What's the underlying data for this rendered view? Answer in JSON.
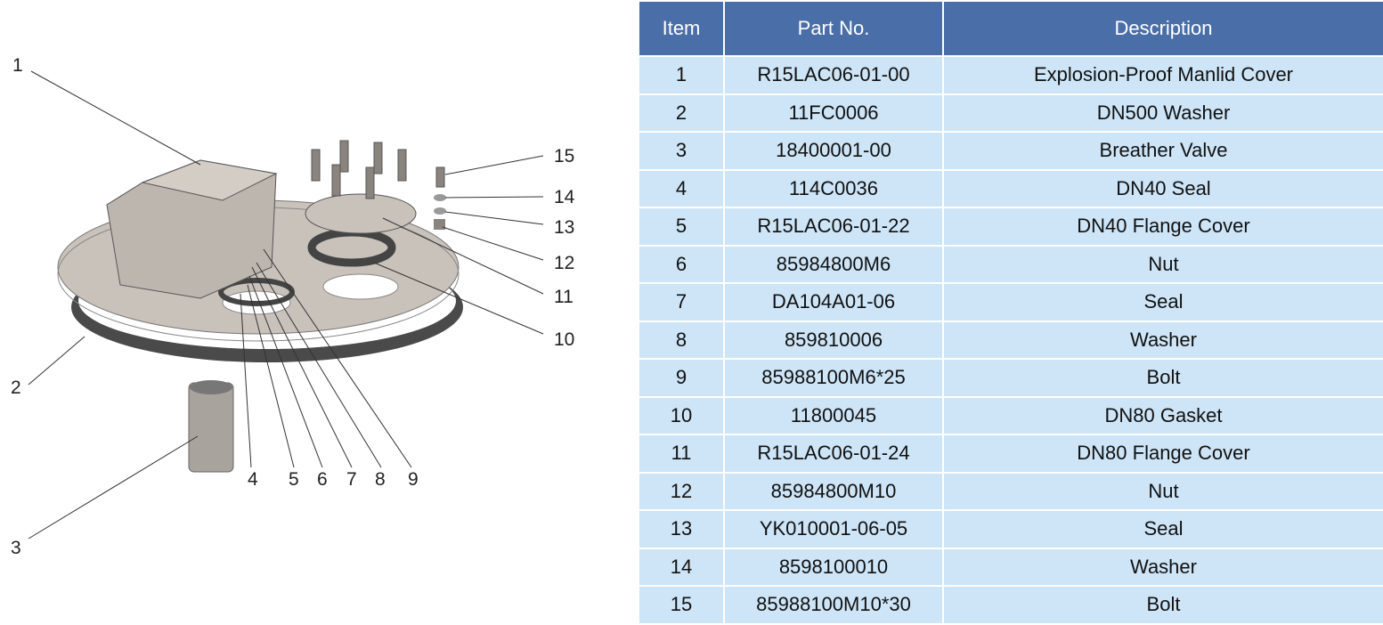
{
  "diagram": {
    "callouts": [
      "1",
      "2",
      "3",
      "4",
      "5",
      "6",
      "7",
      "8",
      "9",
      "10",
      "11",
      "12",
      "13",
      "14",
      "15"
    ]
  },
  "table": {
    "headers": [
      "Item",
      "Part No.",
      "Description"
    ],
    "rows": [
      [
        "1",
        "R15LAC06-01-00",
        "Explosion-Proof Manlid Cover"
      ],
      [
        "2",
        "11FC0006",
        "DN500 Washer"
      ],
      [
        "3",
        "18400001-00",
        "Breather Valve"
      ],
      [
        "4",
        "114C0036",
        "DN40 Seal"
      ],
      [
        "5",
        "R15LAC06-01-22",
        "DN40 Flange Cover"
      ],
      [
        "6",
        "85984800M6",
        "Nut"
      ],
      [
        "7",
        "DA104A01-06",
        "Seal"
      ],
      [
        "8",
        "859810006",
        "Washer"
      ],
      [
        "9",
        "85988100M6*25",
        "Bolt"
      ],
      [
        "10",
        "11800045",
        "DN80 Gasket"
      ],
      [
        "11",
        "R15LAC06-01-24",
        "DN80 Flange Cover"
      ],
      [
        "12",
        "85984800M10",
        "Nut"
      ],
      [
        "13",
        "YK010001-06-05",
        "Seal"
      ],
      [
        "14",
        "8598100010",
        "Washer"
      ],
      [
        "15",
        "85988100M10*30",
        "Bolt"
      ]
    ]
  },
  "colors": {
    "header": "#4a6ea8",
    "row": "#cde5f7",
    "part": "#c9c2bb",
    "gasket": "#555555"
  }
}
